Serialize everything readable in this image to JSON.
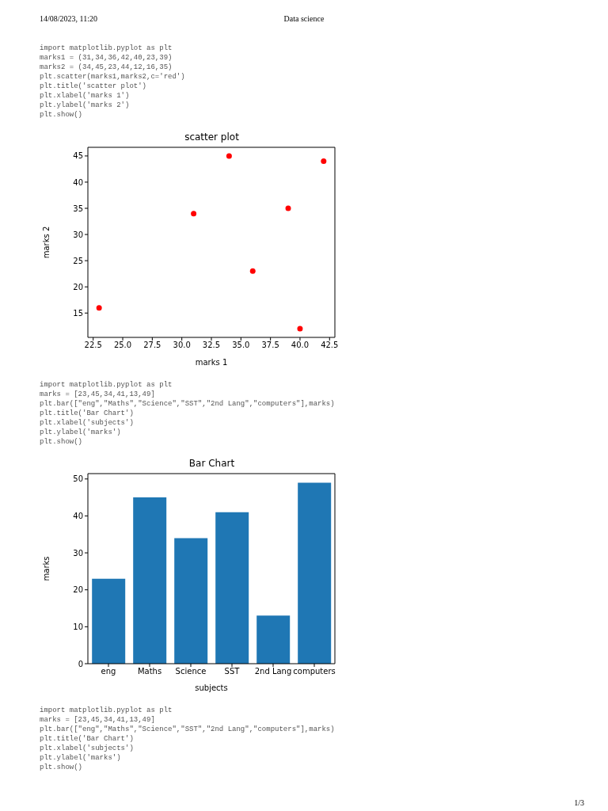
{
  "chart_data": [
    {
      "type": "scatter",
      "title": "scatter plot",
      "xlabel": "marks 1",
      "ylabel": "marks 2",
      "x": [
        31,
        34,
        36,
        42,
        40,
        23,
        39
      ],
      "values": [
        34,
        45,
        23,
        44,
        12,
        16,
        35
      ],
      "color": "#ff0000",
      "marker": "circle",
      "xlim": [
        22.05,
        42.95
      ],
      "xticks": [
        {
          "value": 22.5,
          "label": "22.5"
        },
        {
          "value": 25,
          "label": "25.0"
        },
        {
          "value": 27.5,
          "label": "27.5"
        },
        {
          "value": 30,
          "label": "30.0"
        },
        {
          "value": 32.5,
          "label": "32.5"
        },
        {
          "value": 35,
          "label": "35.0"
        },
        {
          "value": 37.5,
          "label": "37.5"
        },
        {
          "value": 40,
          "label": "40.0"
        },
        {
          "value": 42.5,
          "label": "42.5"
        }
      ],
      "ylim": [
        10.35,
        46.65
      ],
      "yticks": [
        15,
        20,
        25,
        30,
        35,
        40,
        45
      ],
      "grid": false,
      "legend": false,
      "annotations": [
        "14/08/2023, 11:20",
        "Data science",
        "import matplotlib.pyplot as plt\nmarks1 = (31,34,36,42,40,23,39)\nmarks2 = (34,45,23,44,12,16,35)\nplt.scatter(marks1,marks2,c='red')\nplt.title('scatter plot')\nplt.xlabel('marks 1')\nplt.ylabel('marks 2')\nplt.show()"
      ]
    },
    {
      "type": "bar",
      "title": "Bar Chart",
      "xlabel": "subjects",
      "ylabel": "marks",
      "categories": [
        "eng",
        "Maths",
        "Science",
        "SST",
        "2nd Lang",
        "computers"
      ],
      "values": [
        23,
        45,
        34,
        41,
        13,
        49
      ],
      "color": "#1f77b4",
      "ylim": [
        0,
        51.45
      ],
      "yticks": [
        0,
        10,
        20,
        30,
        40,
        50
      ],
      "grid": false,
      "legend": false,
      "annotations": [
        "import matplotlib.pyplot as plt\nmarks = [23,45,34,41,13,49]\nplt.bar([\"eng\",\"Maths\",\"Science\",\"SST\",\"2nd Lang\",\"computers\"],marks)\nplt.title('Bar Chart')\nplt.xlabel('subjects')\nplt.ylabel('marks')\nplt.show()",
        "import matplotlib.pyplot as plt\nmarks = [23,45,34,41,13,49]\nplt.bar([\"eng\",\"Maths\",\"Science\",\"SST\",\"2nd Lang\",\"computers\"],marks)\nplt.title('Bar Chart')\nplt.xlabel('subjects')\nplt.ylabel('marks')\nplt.show()",
        "1/3"
      ]
    }
  ]
}
